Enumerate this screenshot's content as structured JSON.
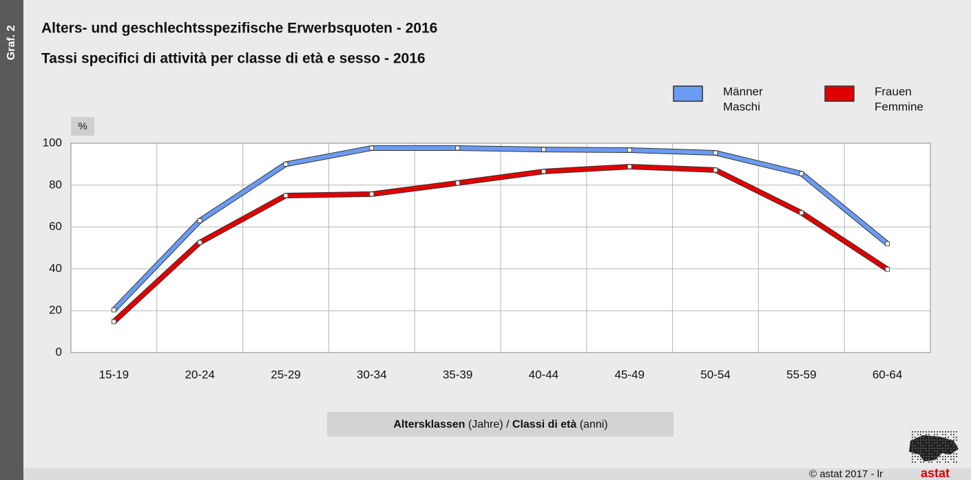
{
  "chart_data": {
    "type": "line",
    "side_label": "Graf. 2",
    "title": "Alters- und geschlechtsspezifische Erwerbsquoten - 2016",
    "subtitle": "Tassi specifici di attività per classe di età e sesso - 2016",
    "y_label": "%",
    "x_label": [
      "Altersklassen",
      " (Jahre) / ",
      "Classi di età",
      " (anni)"
    ],
    "categories": [
      "15-19",
      "20-24",
      "25-29",
      "30-34",
      "35-39",
      "40-44",
      "45-49",
      "50-54",
      "55-59",
      "60-64"
    ],
    "series": [
      {
        "name": "Männer",
        "name_it": "Maschi",
        "color": "#6b9bf2",
        "values": [
          20.4,
          63,
          90,
          97.7,
          97.7,
          97,
          96.7,
          95.4,
          85.5,
          52
        ]
      },
      {
        "name": "Frauen",
        "name_it": "Femmine",
        "color": "#e00000",
        "values": [
          14.8,
          52.6,
          75,
          75.7,
          81,
          86.5,
          88.8,
          87.2,
          66.8,
          39.8
        ]
      }
    ],
    "ylim": [
      0,
      100
    ],
    "yticks": [
      0,
      20,
      40,
      60,
      80,
      100
    ],
    "grid": true,
    "legend": "top-right",
    "footer": "© astat 2017 - lr",
    "logo": "astat"
  }
}
